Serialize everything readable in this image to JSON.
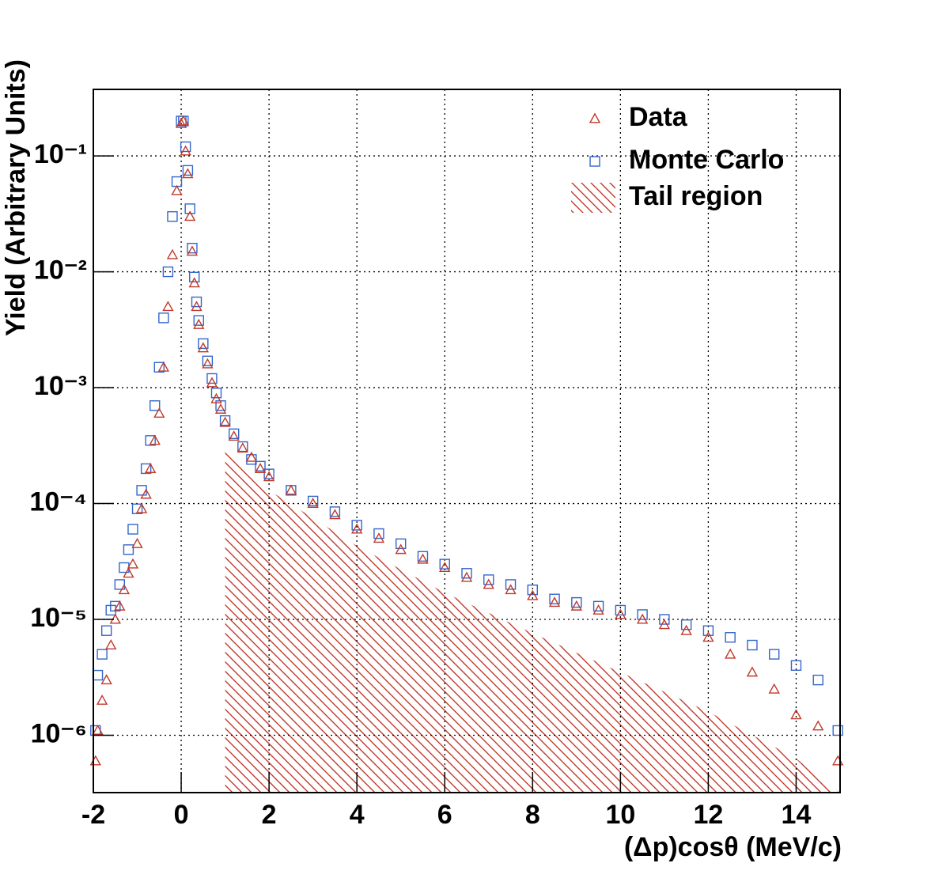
{
  "chart_data": {
    "type": "scatter",
    "x_label": "(Δp)cosθ (MeV/c)",
    "y_label": "Yield (Arbitrary Units)",
    "log_y": true,
    "grid": true,
    "legend_position": "top-right",
    "xlim": [
      -2,
      15
    ],
    "xticks": [
      -2,
      0,
      2,
      4,
      6,
      8,
      10,
      12,
      14
    ],
    "ylim": [
      3.2e-07,
      0.375
    ],
    "yticks": [
      {
        "value": 1e-06,
        "label": "10⁻⁶"
      },
      {
        "value": 1e-05,
        "label": "10⁻⁵"
      },
      {
        "value": 0.0001,
        "label": "10⁻⁴"
      },
      {
        "value": 0.001,
        "label": "10⁻³"
      },
      {
        "value": 0.01,
        "label": "10⁻²"
      },
      {
        "value": 0.1,
        "label": "10⁻¹"
      }
    ],
    "x": [
      -1.95,
      -1.9,
      -1.8,
      -1.7,
      -1.6,
      -1.5,
      -1.4,
      -1.3,
      -1.2,
      -1.1,
      -1.0,
      -0.9,
      -0.8,
      -0.7,
      -0.6,
      -0.5,
      -0.4,
      -0.3,
      -0.2,
      -0.1,
      0,
      0.05,
      0.1,
      0.15,
      0.2,
      0.25,
      0.3,
      0.35,
      0.4,
      0.5,
      0.6,
      0.7,
      0.8,
      0.9,
      1.0,
      1.2,
      1.4,
      1.6,
      1.8,
      2.0,
      2.5,
      3,
      3.5,
      4,
      4.5,
      5,
      5.5,
      6,
      6.5,
      7,
      7.5,
      8,
      8.5,
      9,
      9.5,
      10,
      10.5,
      11,
      11.5,
      12,
      12.5,
      13,
      13.5,
      14,
      14.5,
      14.95
    ],
    "series": [
      {
        "name": "Data",
        "color": "#c0392b",
        "marker": "triangle",
        "values": [
          6e-07,
          1.1e-06,
          2e-06,
          3e-06,
          6e-06,
          1e-05,
          1.3e-05,
          1.8e-05,
          2.5e-05,
          3e-05,
          4.5e-05,
          9e-05,
          0.00012,
          0.0002,
          0.00035,
          0.0006,
          0.0015,
          0.005,
          0.014,
          0.05,
          0.19,
          0.2,
          0.11,
          0.07,
          0.03,
          0.015,
          0.008,
          0.005,
          0.0035,
          0.0022,
          0.0016,
          0.0011,
          0.0008,
          0.00065,
          0.0005,
          0.00038,
          0.0003,
          0.00025,
          0.0002,
          0.00017,
          0.00013,
          0.0001,
          8e-05,
          6e-05,
          5e-05,
          4e-05,
          3.3e-05,
          2.8e-05,
          2.3e-05,
          2e-05,
          1.8e-05,
          1.6e-05,
          1.4e-05,
          1.3e-05,
          1.2e-05,
          1.1e-05,
          1e-05,
          9e-06,
          8e-06,
          7e-06,
          5e-06,
          3.5e-06,
          2.5e-06,
          1.5e-06,
          1.2e-06,
          6e-07
        ]
      },
      {
        "name": "Monte Carlo",
        "color": "#3366cc",
        "marker": "square",
        "values": [
          1.1e-06,
          3.3e-06,
          5e-06,
          8e-06,
          1.2e-05,
          1.3e-05,
          2e-05,
          2.8e-05,
          4e-05,
          6e-05,
          9e-05,
          0.00013,
          0.0002,
          0.00035,
          0.0007,
          0.0015,
          0.004,
          0.01,
          0.03,
          0.06,
          0.2,
          0.2,
          0.12,
          0.075,
          0.035,
          0.016,
          0.009,
          0.0055,
          0.0038,
          0.0024,
          0.0017,
          0.0012,
          0.0009,
          0.0007,
          0.00052,
          0.0004,
          0.00031,
          0.00024,
          0.00021,
          0.00018,
          0.00013,
          0.000105,
          8.5e-05,
          6.5e-05,
          5.5e-05,
          4.5e-05,
          3.5e-05,
          3e-05,
          2.5e-05,
          2.2e-05,
          2e-05,
          1.8e-05,
          1.5e-05,
          1.4e-05,
          1.3e-05,
          1.2e-05,
          1.1e-05,
          1e-05,
          9e-06,
          8e-06,
          7e-06,
          6e-06,
          5e-06,
          4e-06,
          3e-06,
          1.1e-06
        ]
      }
    ],
    "tail": {
      "name": "Tail region",
      "color": "#c0392b",
      "x": [
        1,
        2,
        3,
        4,
        6,
        8,
        10,
        12,
        14,
        15
      ],
      "values": [
        0.0003,
        0.00013,
        7.5e-05,
        4.3e-05,
        1.7e-05,
        7.6e-06,
        3.5e-06,
        1.6e-06,
        6.3e-07,
        3.2e-07
      ]
    }
  }
}
